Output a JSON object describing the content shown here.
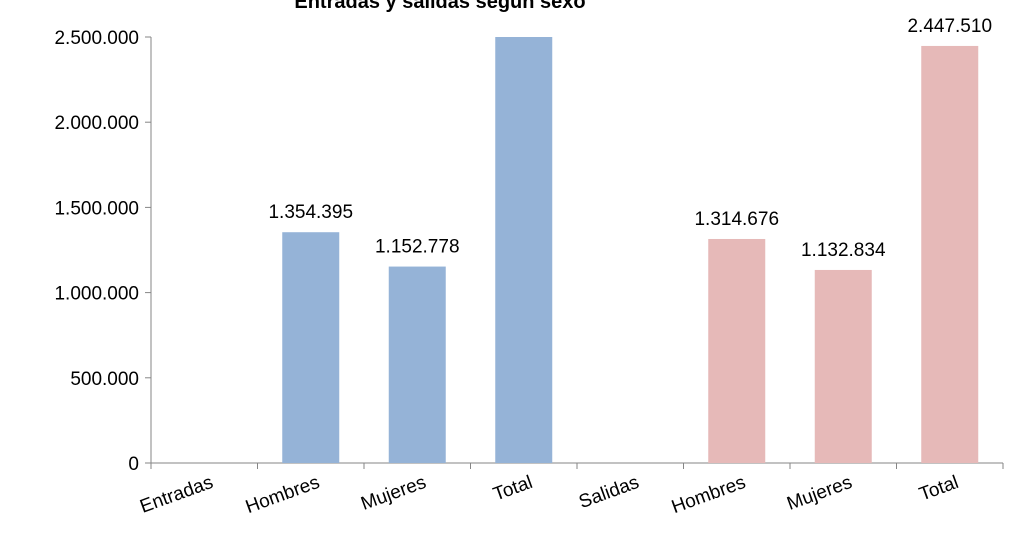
{
  "chart_data": {
    "type": "bar",
    "title": "Entradas y salidas según sexo",
    "xlabel": "",
    "ylabel": "",
    "ylim": [
      0,
      2500000
    ],
    "yticks": [
      0,
      500000,
      1000000,
      1500000,
      2000000,
      2500000
    ],
    "ytick_labels": [
      "0",
      "500.000",
      "1.000.000",
      "1.500.000",
      "2.000.000",
      "2.500.000"
    ],
    "categories": [
      "Entradas",
      "Hombres",
      "Mujeres",
      "Total",
      "Salidas",
      "Hombres",
      "Mujeres",
      "Total"
    ],
    "values": [
      null,
      1354395,
      1152778,
      2507173,
      null,
      1314676,
      1132834,
      2447510
    ],
    "data_labels": [
      "",
      "1.354.395",
      "1.152.778",
      "",
      "",
      "1.314.676",
      "1.132.834",
      "2.447.510"
    ],
    "bar_colors": [
      "#95b3d7",
      "#95b3d7",
      "#95b3d7",
      "#95b3d7",
      "#e6b9b8",
      "#e6b9b8",
      "#e6b9b8",
      "#e6b9b8"
    ],
    "grid": false,
    "legend": "none"
  }
}
